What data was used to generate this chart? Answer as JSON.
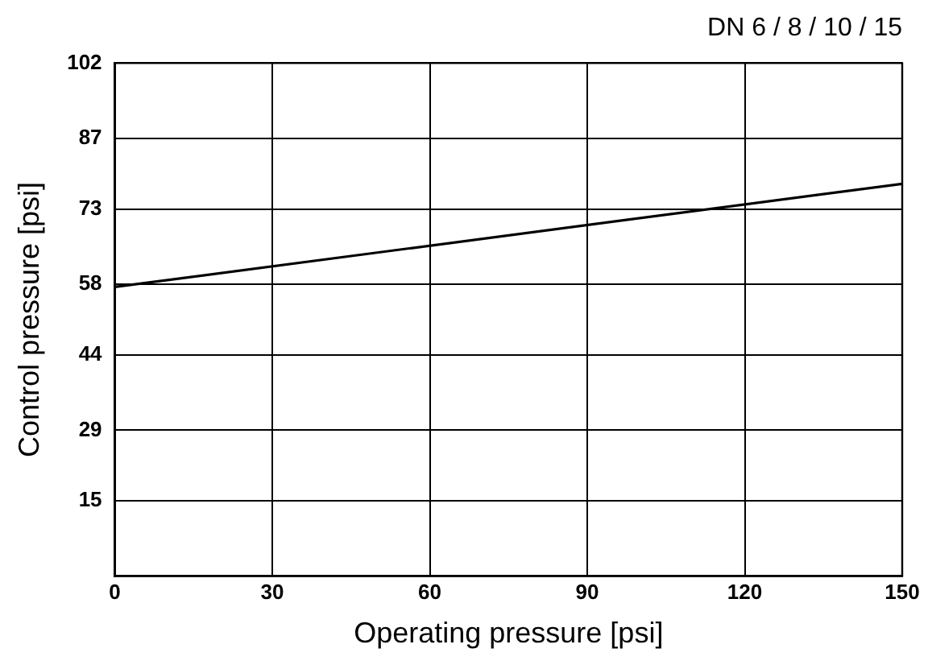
{
  "chart_data": {
    "type": "line",
    "title": "DN 6 / 8 / 10 / 15",
    "xlabel": "Operating pressure [psi]",
    "ylabel": "Control pressure [psi]",
    "x": [
      0,
      150
    ],
    "series": [
      {
        "color": "#000000",
        "values": [
          57.5,
          78
        ]
      }
    ],
    "xlim": [
      0,
      150
    ],
    "xticks": [
      0,
      30,
      60,
      90,
      120,
      150
    ],
    "ylim": [
      0,
      102
    ],
    "yticks": [
      15,
      29,
      44,
      58,
      73,
      87,
      102
    ],
    "grid": true,
    "legend": false,
    "marker": "none",
    "line_style": "solid"
  }
}
